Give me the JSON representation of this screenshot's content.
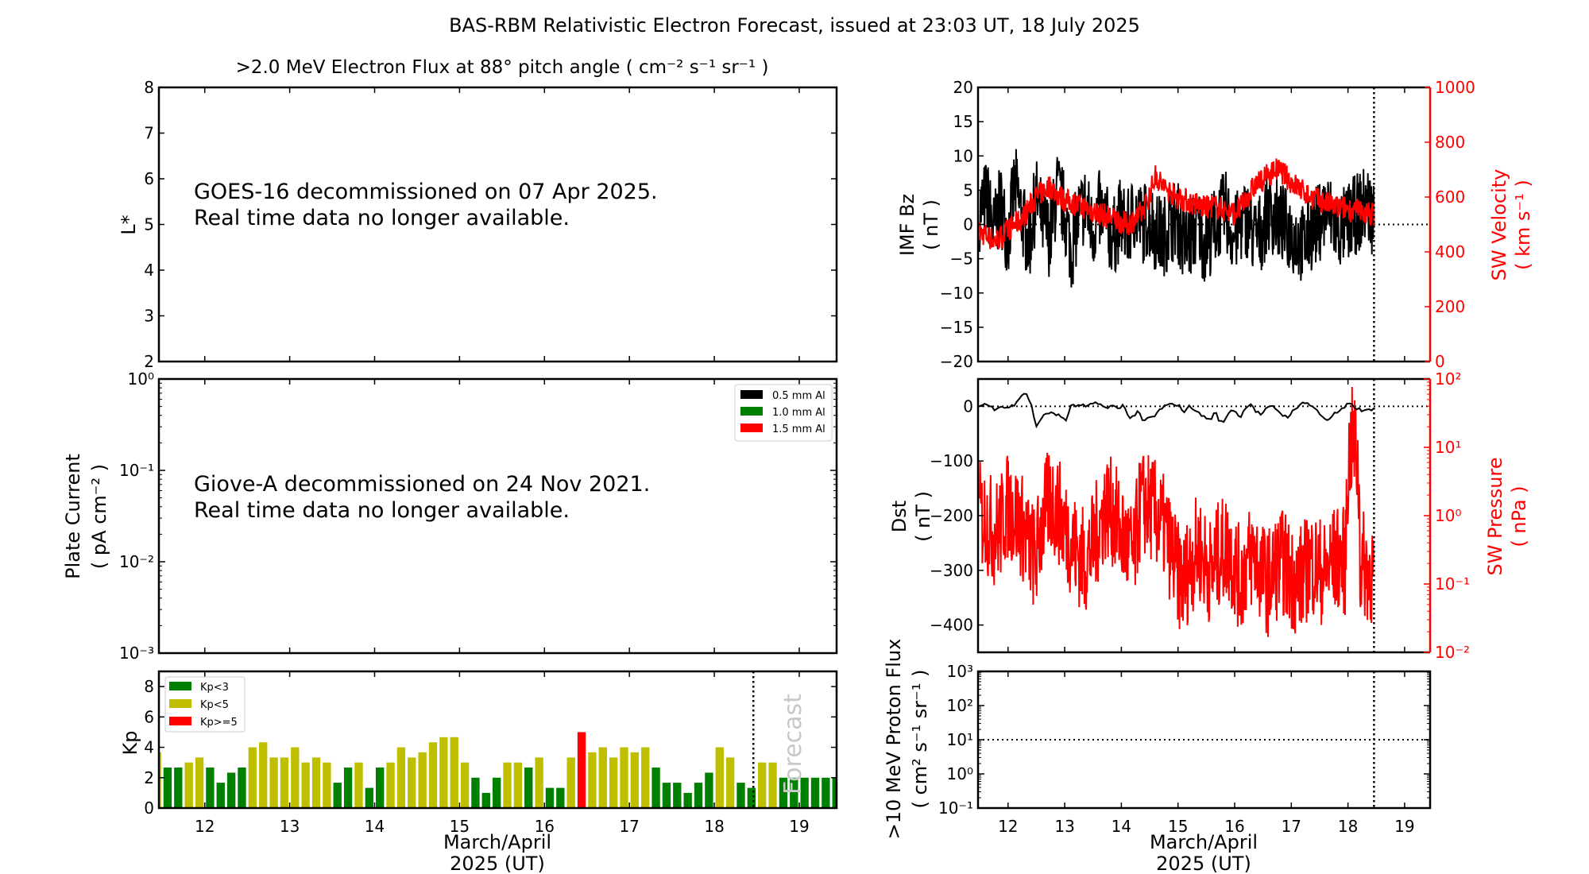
{
  "title": "BAS-RBM Relativistic Electron Forecast, issued at 23:03 UT, 18 July 2025",
  "colors": {
    "kp_low": "#008000",
    "kp_mid": "#bfbf00",
    "kp_high": "#ff0000",
    "red": "#ff0000",
    "black": "#000000",
    "forecast_text": "#c8c8c8"
  },
  "chart_data": [
    {
      "id": "electron-flux",
      "type": "heatmap",
      "title": ">2.0 MeV Electron Flux at 88° pitch angle ( cm⁻² s⁻¹ sr⁻¹ )",
      "ylabel": "L*",
      "ylim": [
        2,
        8
      ],
      "yticks": [
        "2",
        "3",
        "4",
        "5",
        "6",
        "7",
        "8"
      ],
      "xlim": [
        11.46,
        19.44
      ],
      "message": [
        "GOES-16 decommissioned on 07 Apr 2025.",
        "Real time data no longer available."
      ]
    },
    {
      "id": "plate-current",
      "type": "line",
      "ylabel": "Plate Current",
      "ylabel_units": "( pA cm⁻² )",
      "yscale": "log",
      "ylim": [
        0.001,
        1
      ],
      "yticks": [
        "10⁻³",
        "10⁻²",
        "10⁻¹",
        "10⁰"
      ],
      "xlim": [
        11.46,
        19.44
      ],
      "legend": [
        {
          "label": "0.5 mm Al",
          "color": "#000000"
        },
        {
          "label": "1.0 mm Al",
          "color": "#008000"
        },
        {
          "label": "1.5 mm Al",
          "color": "#ff0000"
        }
      ],
      "legend_position": "top-right",
      "message": [
        "Giove-A decommissioned on 24 Nov 2021.",
        "Real time data no longer available."
      ]
    },
    {
      "id": "kp",
      "type": "bar",
      "ylabel": "Kp",
      "ylim": [
        0,
        9
      ],
      "yticks": [
        "0",
        "2",
        "4",
        "6",
        "8"
      ],
      "xlim": [
        11.46,
        19.44
      ],
      "xticks": [
        "12",
        "13",
        "14",
        "15",
        "16",
        "17",
        "18",
        "19"
      ],
      "xlabel": "March/April",
      "xlabel2": "2025 (UT)",
      "bar_start": 11.375,
      "bar_width_days": 0.125,
      "values": [
        3.67,
        2.67,
        2.67,
        3.0,
        3.33,
        2.67,
        1.67,
        2.33,
        2.67,
        4.0,
        4.33,
        3.33,
        3.33,
        4.0,
        3.0,
        3.33,
        3.0,
        1.67,
        2.67,
        3.0,
        1.33,
        2.67,
        3.0,
        4.0,
        3.33,
        3.67,
        4.33,
        4.67,
        4.67,
        3.0,
        2.0,
        1.0,
        2.0,
        3.0,
        3.0,
        2.67,
        3.33,
        1.33,
        1.33,
        3.33,
        5.0,
        3.67,
        4.0,
        3.33,
        4.0,
        3.67,
        4.0,
        2.67,
        1.67,
        1.67,
        1.0,
        1.67,
        2.33,
        4.0,
        3.33,
        1.67,
        1.33,
        3.0,
        3.0,
        2.0,
        2.0,
        2.0,
        2.0,
        2.0,
        2.0
      ],
      "legend": [
        {
          "label": "Kp<3",
          "color": "#008000"
        },
        {
          "label": "Kp<5",
          "color": "#bfbf00"
        },
        {
          "label": "Kp>=5",
          "color": "#ff0000"
        }
      ],
      "legend_position": "top-left",
      "forecast_start": 18.46,
      "forecast_label": "Forecast"
    },
    {
      "id": "imf-sw",
      "type": "line",
      "ylabel": "IMF Bz",
      "ylabel_units": "( nT )",
      "ylim": [
        -20,
        20
      ],
      "yticks": [
        "−20",
        "−15",
        "−10",
        "−5",
        "0",
        "5",
        "10",
        "15",
        "20"
      ],
      "y2label": "SW Velocity",
      "y2label_units": "( km s⁻¹ )",
      "y2lim": [
        0,
        1000
      ],
      "y2ticks": [
        "0",
        "200",
        "400",
        "600",
        "800",
        "1000"
      ],
      "xlim": [
        11.47,
        19.45
      ],
      "now": 18.46,
      "series": [
        {
          "name": "IMF Bz",
          "color": "#000000",
          "x_start": 11.5,
          "x_end": 18.46,
          "values": [
            2,
            4,
            -1,
            3,
            -2,
            6,
            1,
            -3,
            4,
            0,
            -2,
            5,
            2,
            -4,
            1,
            3,
            -1,
            2,
            0,
            -2,
            1,
            -1,
            2,
            0,
            1,
            -1,
            -2,
            0,
            1,
            -3,
            -2,
            0,
            -3,
            -1,
            1,
            2,
            -2,
            0,
            1,
            -2,
            -1,
            2,
            1,
            0,
            -1,
            -2,
            -3,
            -1,
            0,
            2,
            1,
            -1,
            0,
            1,
            2,
            3,
            1
          ]
        },
        {
          "name": "SW Velocity",
          "color": "#ff0000",
          "x_start": 11.5,
          "x_end": 18.46,
          "values": [
            470,
            460,
            440,
            450,
            480,
            500,
            520,
            560,
            600,
            620,
            640,
            610,
            590,
            580,
            570,
            560,
            550,
            540,
            530,
            520,
            510,
            500,
            520,
            540,
            600,
            680,
            640,
            620,
            600,
            590,
            580,
            570,
            560,
            570,
            560,
            550,
            540,
            560,
            600,
            640,
            660,
            680,
            700,
            690,
            660,
            640,
            620,
            600,
            590,
            580,
            570,
            560,
            560,
            550,
            550,
            540,
            540
          ]
        }
      ]
    },
    {
      "id": "dst-pressure",
      "type": "line",
      "ylabel": "Dst",
      "ylabel_units": "( nT )",
      "ylim": [
        -450,
        50
      ],
      "yticks": [
        "−400",
        "−300",
        "−200",
        "−100",
        "0"
      ],
      "y2label": "SW Pressure",
      "y2label_units": "( nPa )",
      "y2scale": "log",
      "y2lim": [
        0.01,
        100
      ],
      "y2ticks": [
        "10⁻²",
        "10⁻¹",
        "10⁰",
        "10¹",
        "10²"
      ],
      "xlim": [
        11.47,
        19.45
      ],
      "now": 18.46,
      "series": [
        {
          "name": "Dst",
          "color": "#000000",
          "x_start": 11.5,
          "x_end": 18.46,
          "values": [
            0,
            5,
            0,
            -5,
            2,
            -3,
            0,
            3,
            20,
            25,
            5,
            -40,
            -20,
            -15,
            -10,
            -15,
            -20,
            -25,
            5,
            0,
            2,
            -2,
            5,
            8,
            0,
            -5,
            3,
            -5,
            5,
            -20,
            -18,
            -10,
            -30,
            -20,
            -20,
            -8,
            0,
            2,
            5,
            0,
            -10,
            0,
            -5,
            -15,
            -20,
            -25,
            -10,
            -30,
            -25,
            -5,
            -10,
            -20,
            0,
            5,
            -10,
            -15,
            -5,
            0,
            -5,
            -15,
            -20,
            -10,
            -5,
            10,
            5,
            0,
            -10,
            -20,
            -25,
            -15,
            -10,
            -5,
            5,
            0,
            -5,
            -10,
            -5,
            -5
          ]
        },
        {
          "name": "SW Pressure",
          "color": "#ff0000",
          "x_start": 11.5,
          "x_end": 18.46,
          "scale": "log",
          "values": [
            1.5,
            1.2,
            0.8,
            1.0,
            2.0,
            1.5,
            1.0,
            0.5,
            0.3,
            1.2,
            2.5,
            1.8,
            1.0,
            0.6,
            0.4,
            0.3,
            0.5,
            1.0,
            2.0,
            1.5,
            0.8,
            0.5,
            0.3,
            2.2,
            2.0,
            1.5,
            1.0,
            0.5,
            0.2,
            0.15,
            0.3,
            0.5,
            0.3,
            0.2,
            0.4,
            0.5,
            0.3,
            0.15,
            0.3,
            0.4,
            0.2,
            0.15,
            0.25,
            0.3,
            0.2,
            0.15,
            0.2,
            0.3,
            0.25,
            0.2,
            0.3,
            0.35,
            0.3,
            20,
            0.3,
            0.25,
            0.2
          ]
        }
      ]
    },
    {
      "id": "proton-flux",
      "type": "line",
      "ylabel": ">10 MeV Proton Flux",
      "ylabel_units": "( cm² s⁻¹ sr⁻¹ )",
      "yscale": "log",
      "ylim": [
        0.1,
        1000
      ],
      "yticks": [
        "10⁻¹",
        "10⁰",
        "10¹",
        "10²",
        "10³"
      ],
      "threshold": 10,
      "xlim": [
        11.47,
        19.45
      ],
      "now": 18.46,
      "xticks": [
        "12",
        "13",
        "14",
        "15",
        "16",
        "17",
        "18",
        "19"
      ],
      "xlabel": "March/April",
      "xlabel2": "2025 (UT)"
    }
  ]
}
